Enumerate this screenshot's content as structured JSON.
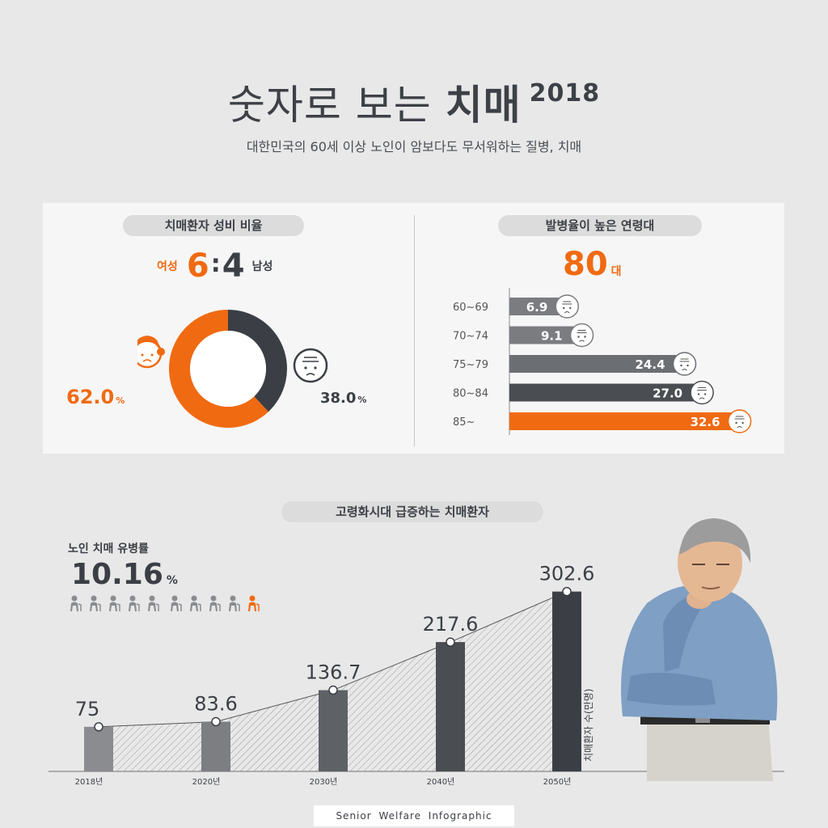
{
  "header": {
    "title_light": "숫자로 보는",
    "title_bold": "치매",
    "title_year": "2018",
    "subtitle": "대한민국의 60세 이상 노인이 암보다도 무서워하는 질병, 치매"
  },
  "gender_section": {
    "title": "치매환자 성비 비율",
    "female_label": "여성",
    "female_ratio": "6",
    "colon": ":",
    "male_ratio": "4",
    "male_label": "남성",
    "female_pct": "62.0",
    "male_pct": "38.0",
    "pct_symbol": "%"
  },
  "age_section": {
    "title": "발병율이 높은 연령대",
    "peak_value": "80",
    "peak_unit": "대"
  },
  "growth_section": {
    "title": "고령화시대 급증하는 치매환자",
    "prevalence_label": "노인 치매 유병률",
    "prevalence_value": "10.16",
    "pct_symbol": "%",
    "people_total": 10,
    "people_highlighted": 1
  },
  "footer": "Senior  Welfare  Infographic",
  "colors": {
    "orange": "#f06a12",
    "dark": "#3b3f45",
    "gray": "#6b6e73",
    "light_gray": "#8a8c8f"
  },
  "chart_data": [
    {
      "type": "pie",
      "title": "치매환자 성비 비율",
      "categories": [
        "여성",
        "남성"
      ],
      "values": [
        62.0,
        38.0
      ],
      "colors": [
        "#f06a12",
        "#3b3f45"
      ],
      "labels": [
        "62.0",
        "38.0"
      ]
    },
    {
      "type": "bar",
      "orientation": "horizontal",
      "title": "발병율이 높은 연령대",
      "categories": [
        "60~69",
        "70~74",
        "75~79",
        "80~84",
        "85~"
      ],
      "values": [
        6.9,
        9.1,
        24.4,
        27.0,
        32.6
      ],
      "labels": [
        "6.9",
        "9.1",
        "24.4",
        "27.0",
        "32.6"
      ],
      "xlim": [
        0,
        36
      ]
    },
    {
      "type": "bar",
      "title": "고령화시대 급증하는 치매환자",
      "categories": [
        "2018년",
        "2020년",
        "2030년",
        "2040년",
        "2050년"
      ],
      "values": [
        75,
        83.6,
        136.7,
        217.6,
        302.6
      ],
      "labels": [
        "75",
        "83.6",
        "136.7",
        "217.6",
        "302.6"
      ],
      "ylabel": "치매환자 수(만명)",
      "ylim": [
        0,
        320
      ]
    }
  ]
}
